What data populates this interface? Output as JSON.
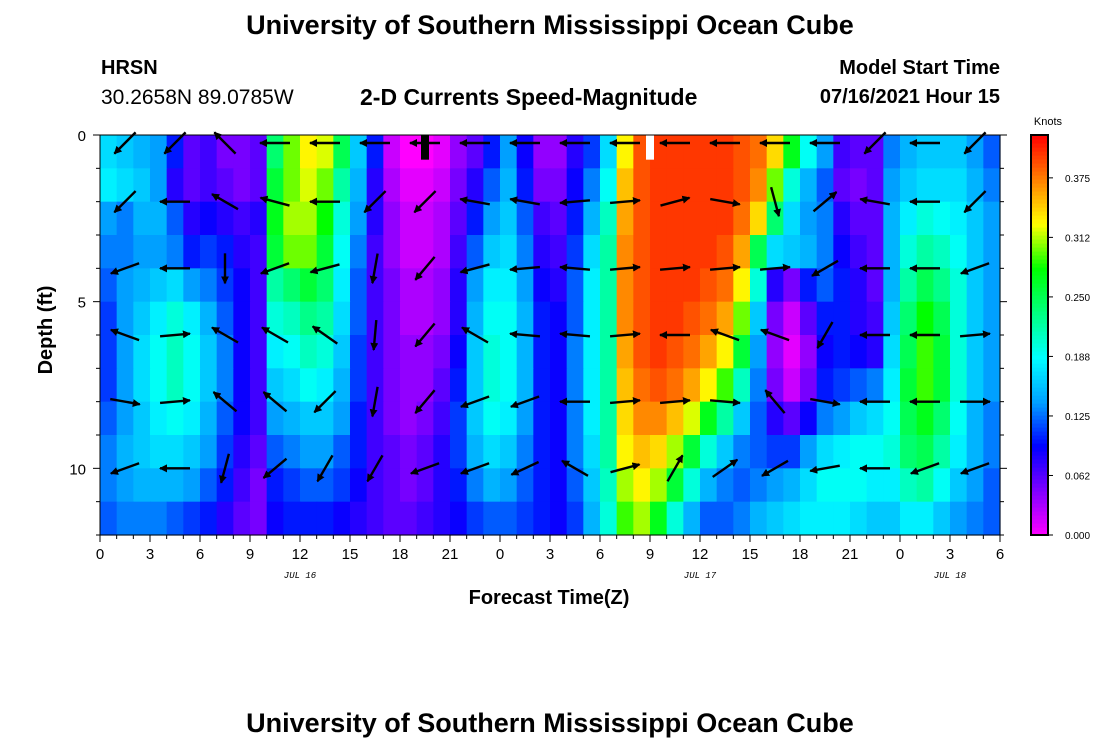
{
  "header": {
    "title": "University of Southern Mississippi Ocean Cube",
    "station": "HRSN",
    "coords": "30.2658N  89.0785W",
    "subtitle": "2-D Currents Speed-Magnitude",
    "model_start_label": "Model Start Time",
    "model_start_value": "07/16/2021 Hour 15",
    "footer_title": "University of Southern Mississippi Ocean Cube"
  },
  "chart_data": {
    "type": "heatmap",
    "xlabel": "Forecast Time(Z)",
    "ylabel": "Depth (ft)",
    "x_tick_labels": [
      "0",
      "3",
      "6",
      "9",
      "12",
      "15",
      "18",
      "21",
      "0",
      "3",
      "6",
      "9",
      "12",
      "15",
      "18",
      "21",
      "0",
      "3",
      "6"
    ],
    "date_labels": [
      {
        "label": "JUL 16",
        "hour": 12
      },
      {
        "label": "JUL 17",
        "hour": 36
      },
      {
        "label": "JUL 18",
        "hour": 51
      }
    ],
    "xlim": [
      0,
      54
    ],
    "y_tick_labels": [
      "0",
      "5",
      "10"
    ],
    "y_ticks": [
      0,
      5,
      10
    ],
    "ylim": [
      0,
      12
    ],
    "colorbar": {
      "unit_label": "Knots",
      "tick_labels": [
        "0.375",
        "0.312",
        "0.250",
        "0.188",
        "0.125",
        "0.062",
        "0.000"
      ],
      "ticks": [
        0.375,
        0.3125,
        0.25,
        0.1875,
        0.125,
        0.0625,
        0.0
      ],
      "range": [
        0,
        0.42
      ],
      "colors": [
        "#ff00ff",
        "#8000ff",
        "#0000ff",
        "#00a0ff",
        "#00ffff",
        "#00ff80",
        "#00ff00",
        "#ffff00",
        "#ff8000",
        "#ff0000"
      ]
    },
    "column_hours": [
      0.5,
      1.5,
      2.5,
      3.5,
      4.5,
      5.5,
      6.5,
      7.5,
      8.5,
      9.5,
      10.5,
      11.5,
      12.5,
      13.5,
      14.5,
      15.5,
      16.5,
      17.5,
      18.5,
      19.5,
      20.5,
      21.5,
      22.5,
      23.5,
      24.5,
      25.5,
      26.5,
      27.5,
      28.5,
      29.5,
      30.5,
      31.5,
      32.5,
      33.5,
      34.5,
      35.5,
      36.5,
      37.5,
      38.5,
      39.5,
      40.5,
      41.5,
      42.5,
      43.5,
      44.5,
      45.5,
      46.5,
      47.5,
      48.5,
      49.5,
      50.5,
      51.5,
      52.5,
      53.5
    ],
    "row_depths": [
      0.5,
      1.5,
      2.5,
      3.5,
      4.5,
      5.5,
      6.5,
      7.5,
      8.5,
      9.5,
      10.5,
      11.5
    ],
    "speed_rows": [
      [
        0.17,
        0.16,
        0.15,
        0.14,
        0.1,
        0.06,
        0.07,
        0.05,
        0.05,
        0.06,
        0.24,
        0.3,
        0.33,
        0.32,
        0.25,
        0.16,
        0.1,
        0.02,
        0.0,
        0.0,
        0.01,
        0.04,
        0.06,
        0.1,
        0.14,
        0.09,
        0.04,
        0.04,
        0.08,
        0.11,
        0.17,
        0.33,
        0.39,
        0.4,
        0.4,
        0.4,
        0.4,
        0.4,
        0.39,
        0.38,
        0.34,
        0.27,
        0.19,
        0.14,
        0.07,
        0.06,
        0.06,
        0.13,
        0.15,
        0.16,
        0.16,
        0.16,
        0.14,
        0.12
      ],
      [
        0.18,
        0.17,
        0.16,
        0.14,
        0.08,
        0.06,
        0.07,
        0.06,
        0.05,
        0.06,
        0.26,
        0.3,
        0.32,
        0.3,
        0.22,
        0.15,
        0.08,
        0.03,
        0.01,
        0.01,
        0.02,
        0.05,
        0.08,
        0.12,
        0.15,
        0.1,
        0.05,
        0.05,
        0.09,
        0.13,
        0.19,
        0.35,
        0.39,
        0.4,
        0.4,
        0.4,
        0.4,
        0.4,
        0.39,
        0.37,
        0.3,
        0.2,
        0.15,
        0.12,
        0.06,
        0.05,
        0.06,
        0.14,
        0.16,
        0.17,
        0.17,
        0.17,
        0.15,
        0.13
      ],
      [
        0.14,
        0.13,
        0.15,
        0.15,
        0.12,
        0.08,
        0.09,
        0.08,
        0.07,
        0.08,
        0.27,
        0.31,
        0.31,
        0.28,
        0.2,
        0.14,
        0.08,
        0.04,
        0.02,
        0.02,
        0.03,
        0.06,
        0.1,
        0.14,
        0.16,
        0.12,
        0.07,
        0.06,
        0.1,
        0.15,
        0.21,
        0.36,
        0.39,
        0.4,
        0.4,
        0.4,
        0.4,
        0.4,
        0.38,
        0.34,
        0.24,
        0.17,
        0.14,
        0.13,
        0.08,
        0.06,
        0.06,
        0.15,
        0.18,
        0.2,
        0.19,
        0.18,
        0.16,
        0.14
      ],
      [
        0.13,
        0.13,
        0.14,
        0.14,
        0.13,
        0.1,
        0.11,
        0.1,
        0.08,
        0.07,
        0.26,
        0.3,
        0.3,
        0.26,
        0.19,
        0.13,
        0.07,
        0.04,
        0.02,
        0.02,
        0.03,
        0.07,
        0.12,
        0.16,
        0.17,
        0.13,
        0.08,
        0.07,
        0.11,
        0.17,
        0.22,
        0.37,
        0.39,
        0.4,
        0.4,
        0.4,
        0.4,
        0.39,
        0.36,
        0.25,
        0.17,
        0.16,
        0.15,
        0.13,
        0.09,
        0.07,
        0.06,
        0.15,
        0.2,
        0.22,
        0.21,
        0.19,
        0.16,
        0.14
      ],
      [
        0.12,
        0.14,
        0.15,
        0.16,
        0.17,
        0.14,
        0.13,
        0.11,
        0.09,
        0.07,
        0.22,
        0.24,
        0.26,
        0.24,
        0.18,
        0.12,
        0.07,
        0.05,
        0.03,
        0.03,
        0.04,
        0.08,
        0.14,
        0.18,
        0.18,
        0.14,
        0.09,
        0.08,
        0.12,
        0.18,
        0.22,
        0.37,
        0.39,
        0.4,
        0.4,
        0.4,
        0.39,
        0.38,
        0.33,
        0.2,
        0.08,
        0.05,
        0.1,
        0.12,
        0.1,
        0.08,
        0.06,
        0.15,
        0.22,
        0.25,
        0.23,
        0.2,
        0.16,
        0.14
      ],
      [
        0.11,
        0.14,
        0.16,
        0.18,
        0.2,
        0.18,
        0.15,
        0.12,
        0.09,
        0.07,
        0.2,
        0.21,
        0.23,
        0.22,
        0.17,
        0.12,
        0.07,
        0.05,
        0.03,
        0.03,
        0.04,
        0.08,
        0.15,
        0.19,
        0.19,
        0.15,
        0.1,
        0.09,
        0.12,
        0.18,
        0.22,
        0.37,
        0.39,
        0.4,
        0.4,
        0.39,
        0.38,
        0.36,
        0.3,
        0.16,
        0.05,
        0.02,
        0.06,
        0.1,
        0.1,
        0.08,
        0.07,
        0.16,
        0.24,
        0.28,
        0.25,
        0.2,
        0.16,
        0.14
      ],
      [
        0.11,
        0.14,
        0.17,
        0.19,
        0.21,
        0.19,
        0.16,
        0.13,
        0.09,
        0.07,
        0.18,
        0.19,
        0.21,
        0.2,
        0.16,
        0.11,
        0.07,
        0.05,
        0.04,
        0.04,
        0.05,
        0.09,
        0.16,
        0.2,
        0.19,
        0.15,
        0.1,
        0.09,
        0.13,
        0.18,
        0.22,
        0.36,
        0.39,
        0.4,
        0.39,
        0.38,
        0.36,
        0.33,
        0.26,
        0.14,
        0.04,
        0.01,
        0.04,
        0.09,
        0.1,
        0.09,
        0.08,
        0.17,
        0.25,
        0.29,
        0.26,
        0.2,
        0.16,
        0.14
      ],
      [
        0.11,
        0.14,
        0.17,
        0.19,
        0.21,
        0.19,
        0.16,
        0.13,
        0.09,
        0.07,
        0.16,
        0.17,
        0.19,
        0.18,
        0.15,
        0.11,
        0.07,
        0.05,
        0.04,
        0.04,
        0.06,
        0.1,
        0.16,
        0.2,
        0.19,
        0.15,
        0.1,
        0.09,
        0.13,
        0.18,
        0.22,
        0.35,
        0.38,
        0.39,
        0.38,
        0.36,
        0.33,
        0.29,
        0.21,
        0.13,
        0.05,
        0.02,
        0.05,
        0.1,
        0.11,
        0.12,
        0.13,
        0.18,
        0.26,
        0.29,
        0.26,
        0.2,
        0.16,
        0.14
      ],
      [
        0.12,
        0.14,
        0.16,
        0.18,
        0.19,
        0.18,
        0.15,
        0.12,
        0.09,
        0.07,
        0.14,
        0.15,
        0.16,
        0.16,
        0.14,
        0.1,
        0.07,
        0.05,
        0.04,
        0.05,
        0.07,
        0.11,
        0.16,
        0.19,
        0.18,
        0.14,
        0.1,
        0.09,
        0.13,
        0.18,
        0.22,
        0.34,
        0.37,
        0.37,
        0.35,
        0.32,
        0.27,
        0.22,
        0.16,
        0.12,
        0.08,
        0.06,
        0.09,
        0.13,
        0.14,
        0.16,
        0.17,
        0.19,
        0.25,
        0.27,
        0.24,
        0.19,
        0.15,
        0.13
      ],
      [
        0.13,
        0.15,
        0.16,
        0.17,
        0.17,
        0.16,
        0.14,
        0.11,
        0.08,
        0.06,
        0.12,
        0.13,
        0.14,
        0.14,
        0.12,
        0.1,
        0.07,
        0.06,
        0.05,
        0.06,
        0.08,
        0.11,
        0.15,
        0.17,
        0.16,
        0.13,
        0.1,
        0.09,
        0.13,
        0.17,
        0.22,
        0.33,
        0.35,
        0.34,
        0.31,
        0.26,
        0.2,
        0.16,
        0.13,
        0.12,
        0.11,
        0.11,
        0.14,
        0.17,
        0.18,
        0.19,
        0.19,
        0.2,
        0.24,
        0.25,
        0.22,
        0.18,
        0.15,
        0.13
      ],
      [
        0.13,
        0.14,
        0.15,
        0.15,
        0.15,
        0.14,
        0.12,
        0.1,
        0.07,
        0.05,
        0.1,
        0.11,
        0.12,
        0.12,
        0.11,
        0.09,
        0.07,
        0.06,
        0.05,
        0.06,
        0.08,
        0.1,
        0.13,
        0.15,
        0.14,
        0.12,
        0.1,
        0.09,
        0.12,
        0.16,
        0.21,
        0.31,
        0.33,
        0.31,
        0.26,
        0.2,
        0.15,
        0.13,
        0.12,
        0.13,
        0.14,
        0.15,
        0.17,
        0.19,
        0.19,
        0.19,
        0.18,
        0.18,
        0.21,
        0.22,
        0.19,
        0.16,
        0.14,
        0.12
      ],
      [
        0.12,
        0.13,
        0.13,
        0.13,
        0.12,
        0.11,
        0.1,
        0.08,
        0.06,
        0.05,
        0.09,
        0.1,
        0.1,
        0.1,
        0.09,
        0.08,
        0.07,
        0.06,
        0.06,
        0.07,
        0.08,
        0.09,
        0.11,
        0.12,
        0.12,
        0.11,
        0.1,
        0.09,
        0.11,
        0.15,
        0.2,
        0.29,
        0.31,
        0.27,
        0.2,
        0.15,
        0.12,
        0.12,
        0.13,
        0.15,
        0.16,
        0.17,
        0.18,
        0.18,
        0.18,
        0.17,
        0.16,
        0.16,
        0.18,
        0.18,
        0.16,
        0.14,
        0.13,
        0.12
      ]
    ],
    "arrow_times": [
      1.5,
      4.5,
      7.5,
      10.5,
      13.5,
      16.5,
      19.5,
      22.5,
      25.5,
      28.5,
      31.5,
      34.5,
      37.5,
      40.5,
      43.5,
      46.5,
      49.5,
      52.5
    ],
    "arrow_depths": [
      0,
      2,
      4,
      6,
      8,
      10
    ],
    "arrow_angles_deg": [
      [
        225,
        225,
        135,
        180,
        180,
        180,
        180,
        180,
        180,
        180,
        180,
        180,
        180,
        180,
        180,
        225,
        180,
        225
      ],
      [
        225,
        180,
        150,
        165,
        180,
        225,
        225,
        170,
        170,
        185,
        5,
        15,
        350,
        285,
        40,
        170,
        180,
        225
      ],
      [
        200,
        180,
        270,
        200,
        195,
        260,
        230,
        195,
        185,
        175,
        5,
        5,
        5,
        5,
        210,
        180,
        180,
        200
      ],
      [
        160,
        5,
        150,
        150,
        145,
        265,
        230,
        150,
        175,
        175,
        5,
        180,
        160,
        160,
        240,
        180,
        180,
        5
      ],
      [
        350,
        5,
        140,
        140,
        225,
        260,
        230,
        200,
        200,
        180,
        5,
        5,
        355,
        130,
        350,
        180,
        180,
        0
      ],
      [
        200,
        180,
        255,
        220,
        240,
        240,
        200,
        200,
        205,
        150,
        15,
        60,
        35,
        210,
        190,
        180,
        200,
        200
      ]
    ],
    "surface_markers": [
      {
        "hour": 19.5,
        "depth": 0.5,
        "color": "#000000"
      },
      {
        "hour": 33.0,
        "depth": 0.5,
        "color": "#ffffff"
      }
    ]
  }
}
